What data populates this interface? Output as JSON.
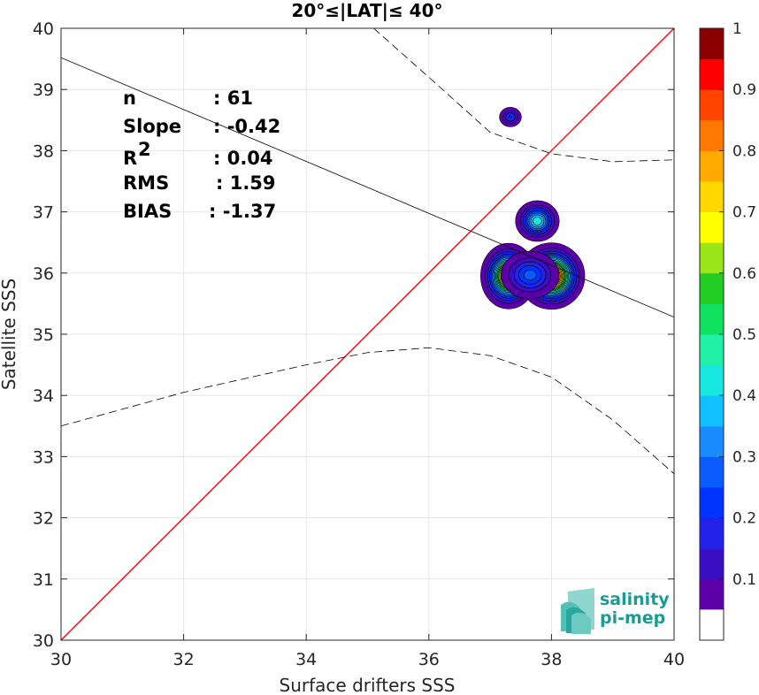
{
  "chart_data": {
    "type": "heatmap",
    "title": "20°≤|LAT|≤ 40°",
    "xlabel": "Surface drifters SSS",
    "ylabel": "Satellite SSS",
    "xlim": [
      30,
      40
    ],
    "ylim": [
      30,
      40
    ],
    "xticks": [
      "30",
      "32",
      "34",
      "36",
      "38",
      "40"
    ],
    "yticks": [
      "30",
      "31",
      "32",
      "33",
      "34",
      "35",
      "36",
      "37",
      "38",
      "39",
      "40"
    ],
    "grid": true,
    "stats": [
      {
        "label": "n",
        "value": ": 61"
      },
      {
        "label": "Slope",
        "value": ": -0.42"
      },
      {
        "label": "R",
        "sup": "2",
        "value": ": 0.04"
      },
      {
        "label": "RMS",
        "value": ": 1.59"
      },
      {
        "label": "BIAS",
        "value": ": -1.37"
      }
    ],
    "identity_line": {
      "color": "#ff0000",
      "from": [
        30,
        30
      ],
      "to": [
        40,
        40
      ]
    },
    "regression_line": {
      "color": "#000000",
      "from": [
        30,
        39.52
      ],
      "to": [
        40,
        35.28
      ]
    },
    "confidence_upper": {
      "x": [
        35.1,
        36,
        37,
        38,
        39,
        40
      ],
      "y": [
        40,
        39.2,
        38.3,
        37.95,
        37.82,
        37.85
      ]
    },
    "confidence_lower": {
      "x": [
        30,
        32,
        34,
        35,
        36,
        37,
        38,
        39,
        40
      ],
      "y": [
        33.5,
        34.05,
        34.5,
        34.7,
        34.78,
        34.65,
        34.3,
        33.6,
        32.72
      ]
    },
    "density_blobs": [
      {
        "x": 37.33,
        "y": 38.55,
        "sx": 0.09,
        "sy": 0.08,
        "peak": 0.18
      },
      {
        "x": 37.77,
        "y": 36.85,
        "sx": 0.15,
        "sy": 0.14,
        "peak": 0.42
      },
      {
        "x": 37.3,
        "y": 35.95,
        "sx": 0.17,
        "sy": 0.2,
        "peak": 0.9
      },
      {
        "x": 38.0,
        "y": 35.95,
        "sx": 0.2,
        "sy": 0.2,
        "peak": 1.0
      },
      {
        "x": 37.65,
        "y": 35.97,
        "sx": 0.22,
        "sy": 0.18,
        "peak": 0.25
      }
    ],
    "colorbar": {
      "range": [
        0,
        1
      ],
      "ticks": [
        "0.1",
        "0.2",
        "0.3",
        "0.4",
        "0.5",
        "0.6",
        "0.7",
        "0.8",
        "0.9",
        "1"
      ],
      "levels": [
        "#ffffff",
        "#5b00a8",
        "#3a0fc4",
        "#2222e8",
        "#0033ff",
        "#0a5cff",
        "#1a8cff",
        "#10c0ff",
        "#16e8e0",
        "#20f0a8",
        "#10e060",
        "#22cc22",
        "#9ae61a",
        "#ffff00",
        "#ffd800",
        "#ffaa00",
        "#ff7800",
        "#ff4400",
        "#ff0000",
        "#d40000",
        "#8b0000"
      ]
    }
  },
  "logo": {
    "line1": "salinity",
    "line2": "pi-mep"
  }
}
